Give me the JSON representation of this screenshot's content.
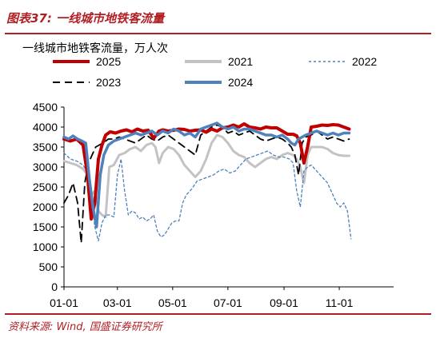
{
  "figure": {
    "title": "图表37:  一线城市地铁客流量",
    "source": "资料来源: Wind, 国盛证券研究所"
  },
  "chart_data": {
    "type": "line",
    "title": "一线城市地铁客流量，万人次",
    "xlabel": "",
    "ylabel": "",
    "ylim": [
      0,
      4500
    ],
    "yticks": [
      "0",
      "500",
      "1000",
      "1500",
      "2000",
      "2500",
      "3000",
      "3500",
      "4000",
      "4500"
    ],
    "xticks": [
      "01-01",
      "03-01",
      "05-01",
      "07-01",
      "09-01",
      "11-01"
    ],
    "grid": false,
    "legend_position": "top",
    "series": [
      {
        "name": "2025",
        "color": "#c00000",
        "dash": "solid",
        "width": 4,
        "points": [
          [
            1,
            3700
          ],
          [
            8,
            3650
          ],
          [
            15,
            3700
          ],
          [
            22,
            3550
          ],
          [
            27,
            2800
          ],
          [
            31,
            1700
          ],
          [
            35,
            2100
          ],
          [
            39,
            3200
          ],
          [
            43,
            3550
          ],
          [
            47,
            3800
          ],
          [
            52,
            3880
          ],
          [
            58,
            3850
          ],
          [
            64,
            3900
          ],
          [
            70,
            3930
          ],
          [
            76,
            3880
          ],
          [
            82,
            3950
          ],
          [
            88,
            3900
          ],
          [
            94,
            3920
          ],
          [
            100,
            3720
          ],
          [
            106,
            3900
          ],
          [
            110,
            3930
          ],
          [
            116,
            3900
          ],
          [
            122,
            3920
          ],
          [
            128,
            3950
          ],
          [
            134,
            3940
          ],
          [
            140,
            3900
          ],
          [
            146,
            3920
          ],
          [
            152,
            3930
          ],
          [
            158,
            3870
          ],
          [
            164,
            3950
          ],
          [
            170,
            3900
          ],
          [
            176,
            3980
          ],
          [
            182,
            4000
          ],
          [
            188,
            4050
          ],
          [
            194,
            4000
          ],
          [
            200,
            4080
          ],
          [
            206,
            4000
          ],
          [
            212,
            3980
          ],
          [
            218,
            3950
          ],
          [
            224,
            4000
          ],
          [
            230,
            3980
          ],
          [
            236,
            3980
          ],
          [
            242,
            3900
          ],
          [
            248,
            3820
          ],
          [
            254,
            3820
          ],
          [
            258,
            3780
          ],
          [
            262,
            3600
          ],
          [
            266,
            3100
          ],
          [
            270,
            3500
          ],
          [
            274,
            4000
          ],
          [
            280,
            4020
          ],
          [
            286,
            4050
          ],
          [
            292,
            4040
          ],
          [
            298,
            4060
          ],
          [
            304,
            4050
          ],
          [
            310,
            4000
          ],
          [
            316,
            3950
          ]
        ]
      },
      {
        "name": "2021",
        "color": "#c3c3c3",
        "dash": "solid",
        "width": 3,
        "points": [
          [
            1,
            3150
          ],
          [
            8,
            3100
          ],
          [
            15,
            3050
          ],
          [
            22,
            2950
          ],
          [
            27,
            2800
          ],
          [
            31,
            2300
          ],
          [
            35,
            2400
          ],
          [
            39,
            1900
          ],
          [
            43,
            1800
          ],
          [
            47,
            1750
          ],
          [
            51,
            3000
          ],
          [
            56,
            3050
          ],
          [
            62,
            3300
          ],
          [
            68,
            3350
          ],
          [
            74,
            3450
          ],
          [
            80,
            3500
          ],
          [
            86,
            3400
          ],
          [
            92,
            3550
          ],
          [
            98,
            3600
          ],
          [
            102,
            3500
          ],
          [
            106,
            3100
          ],
          [
            110,
            3350
          ],
          [
            116,
            3500
          ],
          [
            122,
            3450
          ],
          [
            128,
            3300
          ],
          [
            134,
            3050
          ],
          [
            140,
            2900
          ],
          [
            146,
            2750
          ],
          [
            152,
            2900
          ],
          [
            158,
            3200
          ],
          [
            164,
            3600
          ],
          [
            170,
            3800
          ],
          [
            176,
            3750
          ],
          [
            182,
            3600
          ],
          [
            188,
            3400
          ],
          [
            194,
            3300
          ],
          [
            200,
            3250
          ],
          [
            206,
            3100
          ],
          [
            212,
            3000
          ],
          [
            218,
            3100
          ],
          [
            224,
            3200
          ],
          [
            230,
            3250
          ],
          [
            236,
            3200
          ],
          [
            242,
            3300
          ],
          [
            248,
            3350
          ],
          [
            254,
            3300
          ],
          [
            258,
            3200
          ],
          [
            262,
            3000
          ],
          [
            266,
            2600
          ],
          [
            270,
            3300
          ],
          [
            274,
            3500
          ],
          [
            280,
            3500
          ],
          [
            286,
            3500
          ],
          [
            292,
            3450
          ],
          [
            298,
            3350
          ],
          [
            304,
            3300
          ],
          [
            310,
            3280
          ],
          [
            316,
            3280
          ]
        ]
      },
      {
        "name": "2022",
        "color": "#4f81bd",
        "dash": "short",
        "width": 1.3,
        "points": [
          [
            1,
            3350
          ],
          [
            8,
            3200
          ],
          [
            15,
            3150
          ],
          [
            22,
            3050
          ],
          [
            27,
            2850
          ],
          [
            31,
            2300
          ],
          [
            35,
            1500
          ],
          [
            39,
            1150
          ],
          [
            43,
            1600
          ],
          [
            47,
            1800
          ],
          [
            51,
            1800
          ],
          [
            56,
            1750
          ],
          [
            60,
            2800
          ],
          [
            64,
            3200
          ],
          [
            68,
            2400
          ],
          [
            72,
            1800
          ],
          [
            76,
            1900
          ],
          [
            80,
            1850
          ],
          [
            84,
            1700
          ],
          [
            88,
            1750
          ],
          [
            92,
            1650
          ],
          [
            96,
            1700
          ],
          [
            100,
            1800
          ],
          [
            104,
            1400
          ],
          [
            108,
            1250
          ],
          [
            112,
            1300
          ],
          [
            116,
            1450
          ],
          [
            120,
            1600
          ],
          [
            124,
            1650
          ],
          [
            128,
            1650
          ],
          [
            132,
            2100
          ],
          [
            136,
            2300
          ],
          [
            142,
            2450
          ],
          [
            148,
            2650
          ],
          [
            154,
            2700
          ],
          [
            160,
            2750
          ],
          [
            166,
            2800
          ],
          [
            172,
            2900
          ],
          [
            178,
            2950
          ],
          [
            184,
            2850
          ],
          [
            190,
            2900
          ],
          [
            196,
            3050
          ],
          [
            202,
            3200
          ],
          [
            208,
            3250
          ],
          [
            214,
            3300
          ],
          [
            220,
            3350
          ],
          [
            226,
            3400
          ],
          [
            232,
            3300
          ],
          [
            238,
            3250
          ],
          [
            244,
            3250
          ],
          [
            250,
            3200
          ],
          [
            254,
            3100
          ],
          [
            258,
            2400
          ],
          [
            262,
            2000
          ],
          [
            266,
            2900
          ],
          [
            270,
            3000
          ],
          [
            274,
            3050
          ],
          [
            280,
            2900
          ],
          [
            286,
            2750
          ],
          [
            292,
            2600
          ],
          [
            298,
            2300
          ],
          [
            302,
            2100
          ],
          [
            306,
            2000
          ],
          [
            310,
            2100
          ],
          [
            314,
            1900
          ],
          [
            318,
            1200
          ]
        ]
      },
      {
        "name": "2023",
        "color": "#000000",
        "dash": "long",
        "width": 1.8,
        "points": [
          [
            1,
            2100
          ],
          [
            6,
            2300
          ],
          [
            11,
            2600
          ],
          [
            16,
            2100
          ],
          [
            20,
            1100
          ],
          [
            24,
            2600
          ],
          [
            28,
            3100
          ],
          [
            32,
            3300
          ],
          [
            36,
            3500
          ],
          [
            40,
            3550
          ],
          [
            44,
            3600
          ],
          [
            50,
            3700
          ],
          [
            56,
            3700
          ],
          [
            62,
            3750
          ],
          [
            68,
            3700
          ],
          [
            74,
            3650
          ],
          [
            80,
            3600
          ],
          [
            86,
            3700
          ],
          [
            92,
            3800
          ],
          [
            98,
            3700
          ],
          [
            104,
            3650
          ],
          [
            110,
            3750
          ],
          [
            116,
            3800
          ],
          [
            122,
            3700
          ],
          [
            128,
            3600
          ],
          [
            134,
            3500
          ],
          [
            140,
            3400
          ],
          [
            146,
            3300
          ],
          [
            152,
            3800
          ],
          [
            158,
            3900
          ],
          [
            164,
            4000
          ],
          [
            170,
            4050
          ],
          [
            176,
            4000
          ],
          [
            182,
            3850
          ],
          [
            188,
            3900
          ],
          [
            194,
            3800
          ],
          [
            200,
            3850
          ],
          [
            206,
            3900
          ],
          [
            212,
            3800
          ],
          [
            218,
            3700
          ],
          [
            224,
            3650
          ],
          [
            230,
            3700
          ],
          [
            236,
            3750
          ],
          [
            242,
            3700
          ],
          [
            248,
            3600
          ],
          [
            252,
            3500
          ],
          [
            256,
            3300
          ],
          [
            260,
            2800
          ],
          [
            264,
            3600
          ],
          [
            268,
            3750
          ],
          [
            274,
            3800
          ],
          [
            280,
            3900
          ],
          [
            286,
            3800
          ],
          [
            292,
            3700
          ],
          [
            298,
            3750
          ],
          [
            304,
            3700
          ],
          [
            310,
            3650
          ],
          [
            316,
            3700
          ]
        ]
      },
      {
        "name": "2024",
        "color": "#4f81bd",
        "dash": "solid",
        "width": 3.5,
        "points": [
          [
            1,
            3750
          ],
          [
            6,
            3700
          ],
          [
            11,
            3780
          ],
          [
            16,
            3700
          ],
          [
            21,
            3650
          ],
          [
            25,
            3600
          ],
          [
            29,
            2700
          ],
          [
            33,
            2000
          ],
          [
            37,
            1500
          ],
          [
            41,
            2800
          ],
          [
            45,
            3300
          ],
          [
            50,
            3550
          ],
          [
            56,
            3650
          ],
          [
            62,
            3700
          ],
          [
            68,
            3750
          ],
          [
            74,
            3800
          ],
          [
            80,
            3850
          ],
          [
            86,
            3800
          ],
          [
            92,
            3850
          ],
          [
            98,
            3900
          ],
          [
            104,
            3800
          ],
          [
            110,
            3900
          ],
          [
            116,
            3850
          ],
          [
            122,
            3950
          ],
          [
            128,
            3900
          ],
          [
            134,
            3800
          ],
          [
            140,
            3850
          ],
          [
            146,
            3750
          ],
          [
            152,
            3950
          ],
          [
            158,
            4000
          ],
          [
            164,
            4050
          ],
          [
            170,
            4100
          ],
          [
            176,
            4000
          ],
          [
            182,
            3950
          ],
          [
            188,
            4000
          ],
          [
            194,
            3900
          ],
          [
            200,
            3950
          ],
          [
            206,
            3950
          ],
          [
            212,
            3900
          ],
          [
            218,
            3850
          ],
          [
            224,
            3800
          ],
          [
            230,
            3800
          ],
          [
            236,
            3750
          ],
          [
            242,
            3800
          ],
          [
            248,
            3700
          ],
          [
            252,
            3600
          ],
          [
            256,
            3550
          ],
          [
            260,
            3700
          ],
          [
            264,
            3750
          ],
          [
            268,
            3800
          ],
          [
            274,
            3850
          ],
          [
            280,
            3900
          ],
          [
            286,
            3850
          ],
          [
            292,
            3800
          ],
          [
            298,
            3850
          ],
          [
            304,
            3800
          ],
          [
            310,
            3850
          ],
          [
            316,
            3850
          ]
        ]
      }
    ]
  }
}
